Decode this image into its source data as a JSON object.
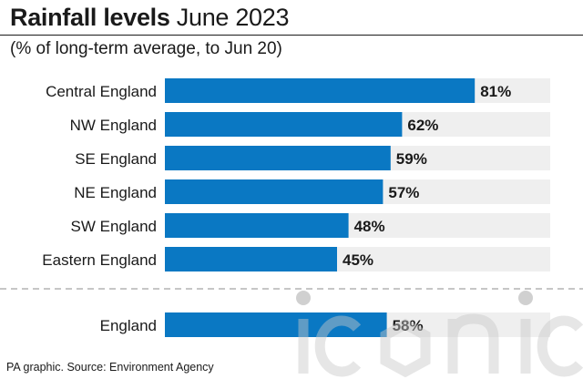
{
  "title_bold": "Rainfall levels",
  "title_rest": " June 2023",
  "subtitle": "(% of long-term average, to Jun 20)",
  "source": "PA graphic. Source: Environment Agency",
  "watermark": "iconic",
  "colors": {
    "bar": "#0a78c3",
    "track": "#efefef",
    "separator": "#b4b4b4"
  },
  "chart_data": {
    "type": "bar",
    "orientation": "horizontal",
    "categories": [
      "Central England",
      "NW England",
      "SE England",
      "NE England",
      "SW England",
      "Eastern England"
    ],
    "values": [
      81,
      62,
      59,
      57,
      48,
      45
    ],
    "value_labels": [
      "81%",
      "62%",
      "59%",
      "57%",
      "48%",
      "45%"
    ],
    "total": {
      "category": "England",
      "value": 58,
      "label": "58%"
    },
    "title": "Rainfall levels June 2023",
    "subtitle": "(% of long-term average, to Jun 20)",
    "xlim": [
      0,
      100
    ],
    "grid": false
  }
}
